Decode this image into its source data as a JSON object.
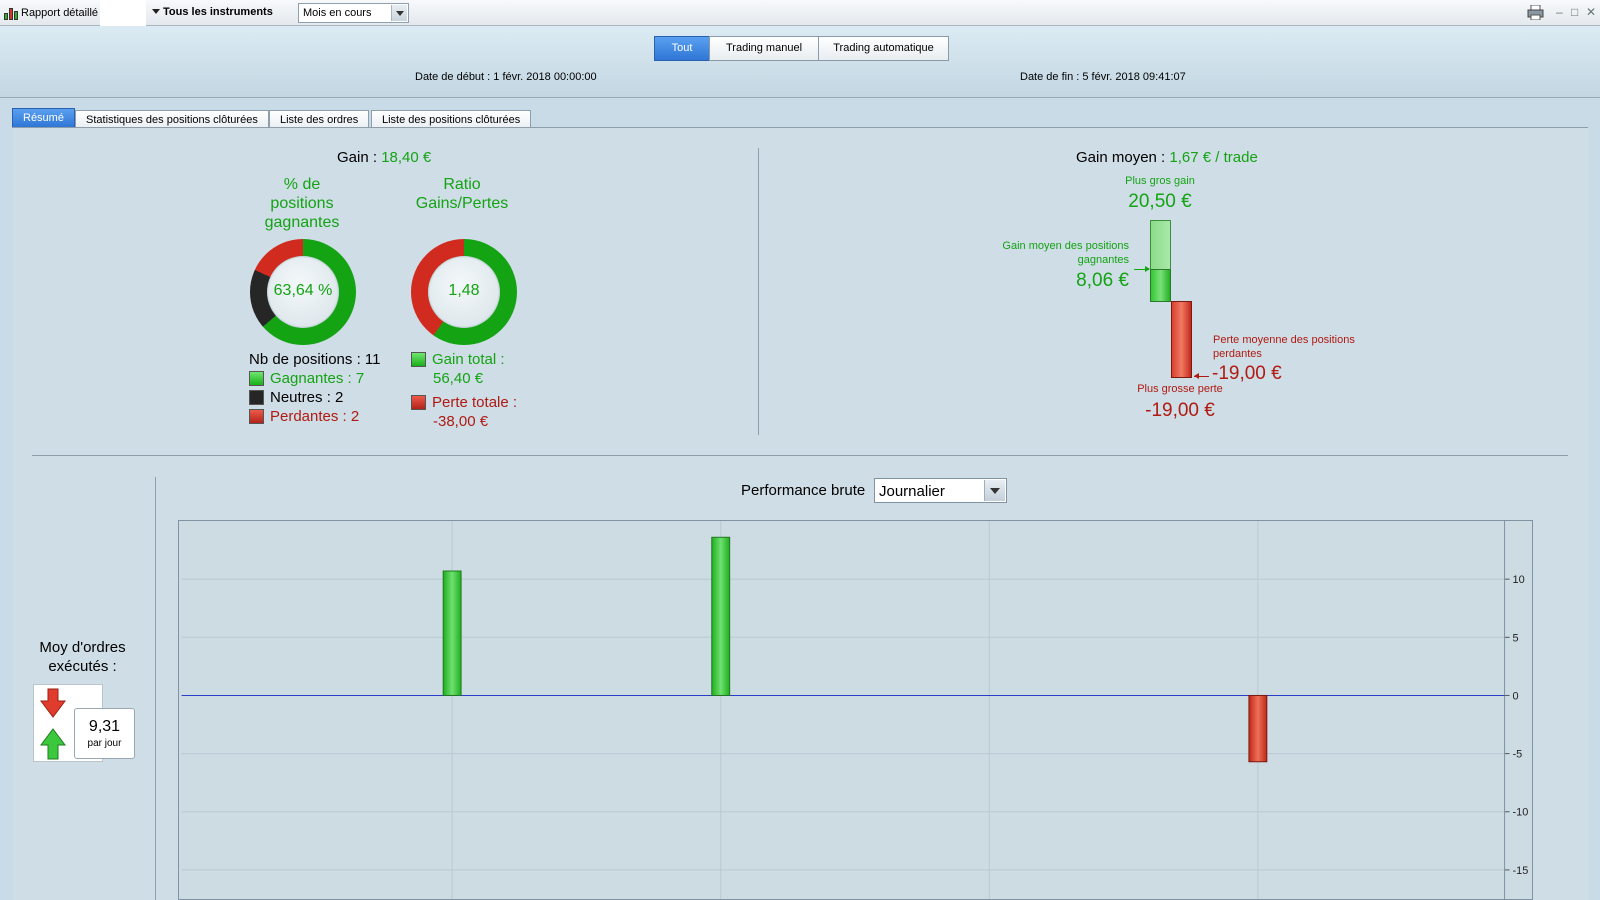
{
  "titlebar": {
    "title": "Rapport détaillé",
    "instrument": "Tous les instruments",
    "period": "Mois en cours"
  },
  "filters": [
    {
      "label": "Tout",
      "active": true
    },
    {
      "label": "Trading manuel",
      "active": false
    },
    {
      "label": "Trading automatique",
      "active": false
    }
  ],
  "dates": {
    "start": "Date de début :  1 févr. 2018 00:00:00",
    "end": "Date de fin :  5 févr. 2018 09:41:07"
  },
  "tabs": [
    {
      "label": "Résumé",
      "active": true
    },
    {
      "label": "Statistiques des positions clôturées",
      "active": false
    },
    {
      "label": "Liste des ordres",
      "active": false
    },
    {
      "label": "Liste des positions clôturées",
      "active": false
    }
  ],
  "gain": {
    "label": "Gain :",
    "value": "18,40 €"
  },
  "win_pct": {
    "title_lines": [
      "% de",
      "positions",
      "gagnantes"
    ],
    "value": "63,64 %",
    "fraction_win": 0.6364,
    "fraction_neutral": 0.1818,
    "fraction_loss": 0.1818
  },
  "ratio": {
    "title_lines": [
      "Ratio",
      "Gains/Pertes"
    ],
    "value": "1,48",
    "fraction_gain": 0.5974,
    "fraction_loss": 0.4026
  },
  "positions": {
    "total": "Nb de positions : 11",
    "winning": "Gagnantes : 7",
    "neutral": "Neutres : 2",
    "losing": "Perdantes : 2"
  },
  "totals": {
    "gain_label": "Gain total :",
    "gain_value": "56,40 €",
    "loss_label": "Perte totale :",
    "loss_value": "-38,00 €"
  },
  "avg_gain": {
    "label": "Gain moyen :",
    "value": "1,67 € / trade"
  },
  "extremes": {
    "best_label": "Plus gros gain",
    "best_value": "20,50 €",
    "avg_win_label_1": "Gain moyen des positions",
    "avg_win_label_2": "gagnantes",
    "avg_win_value": "8,06 €",
    "avg_loss_label_1": "Perte moyenne des positions",
    "avg_loss_label_2": "perdantes",
    "avg_loss_value": "-19,00 €",
    "worst_label": "Plus grosse perte",
    "worst_value": "-19,00 €"
  },
  "performance": {
    "label": "Performance brute",
    "period": "Journalier"
  },
  "orders": {
    "label_1": "Moy d'ordres",
    "label_2": "exécutés :",
    "value": "9,31",
    "unit": "par jour"
  },
  "colors": {
    "gain": "#13a313",
    "loss": "#b01a12",
    "neutral": "#262626",
    "accent": "#2f76d6"
  },
  "chart_data": {
    "type": "bar",
    "title": "Performance brute",
    "x": [
      1,
      2,
      3,
      4,
      5
    ],
    "values": [
      0,
      10.7,
      13.6,
      0,
      -5.7
    ],
    "yticks": [
      10,
      5,
      0,
      -5,
      -10,
      -15
    ],
    "ylim": [
      -17.5,
      15
    ],
    "grid": true,
    "zero_line_color": "#2a3cc8"
  }
}
